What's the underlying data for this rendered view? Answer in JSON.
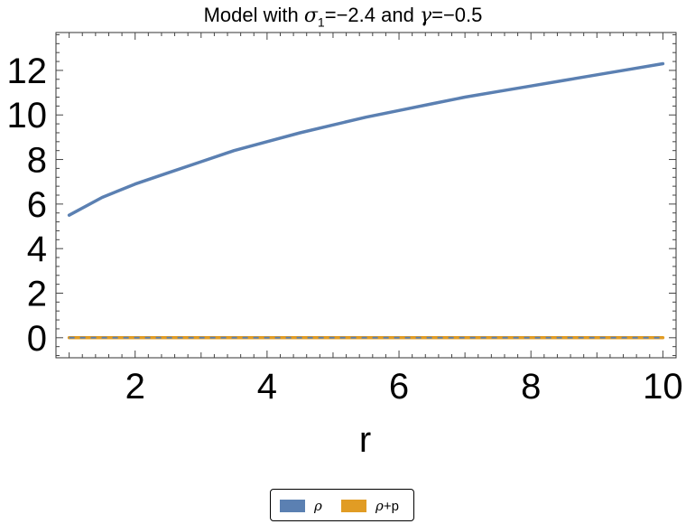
{
  "chart_data": {
    "type": "line",
    "title": {
      "prefix": "Model with ",
      "sigma_symbol": "σ",
      "sigma_subscript": "1",
      "sigma_value": "=−2.4",
      "joiner": " and ",
      "gamma_symbol": "γ",
      "gamma_value": "=−0.5"
    },
    "xlabel": "r",
    "ylabel": "",
    "xlim": [
      0.8,
      10.2
    ],
    "ylim": [
      -0.9,
      13.7
    ],
    "x_ticks": [
      2,
      4,
      6,
      8,
      10
    ],
    "y_ticks": [
      0,
      2,
      4,
      6,
      8,
      10,
      12
    ],
    "grid": false,
    "legend_position": "bottom",
    "series": [
      {
        "name": "ρ",
        "color": "#5b80b2",
        "x": [
          1,
          1.5,
          2,
          2.5,
          3,
          3.5,
          4,
          4.5,
          5,
          5.5,
          6,
          6.5,
          7,
          7.5,
          8,
          8.5,
          9,
          9.5,
          10
        ],
        "y": [
          5.5,
          6.3,
          6.9,
          7.4,
          7.9,
          8.4,
          8.8,
          9.2,
          9.55,
          9.9,
          10.2,
          10.5,
          10.8,
          11.05,
          11.3,
          11.55,
          11.8,
          12.05,
          12.3
        ]
      },
      {
        "name": "ρ+p",
        "color": "#e19c24",
        "x": [
          1,
          10
        ],
        "y": [
          0,
          0
        ]
      }
    ]
  },
  "legend": {
    "item1_symbol": "ρ",
    "item2_symbol": "ρ",
    "item2_suffix": "+p"
  }
}
